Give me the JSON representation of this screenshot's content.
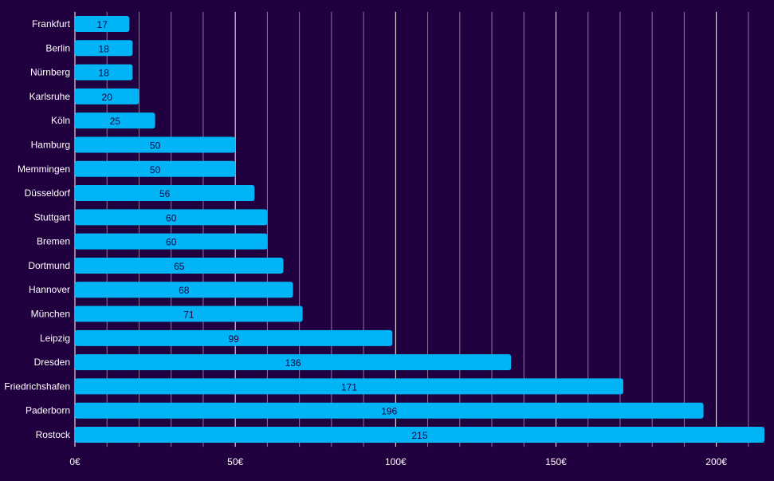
{
  "chart_data": {
    "type": "bar",
    "orientation": "horizontal",
    "categories": [
      "Frankfurt",
      "Berlin",
      "Nürnberg",
      "Karlsruhe",
      "Köln",
      "Hamburg",
      "Memmingen",
      "Düsseldorf",
      "Stuttgart",
      "Bremen",
      "Dortmund",
      "Hannover",
      "München",
      "Leipzig",
      "Dresden",
      "Friedrichshafen",
      "Paderborn",
      "Rostock"
    ],
    "values": [
      17,
      18,
      18,
      20,
      25,
      50,
      50,
      56,
      60,
      60,
      65,
      68,
      71,
      99,
      136,
      171,
      196,
      215
    ],
    "value_labels": [
      "17",
      "18",
      "18",
      "20",
      "25",
      "50",
      "50",
      "56",
      "60",
      "60",
      "65",
      "68",
      "71",
      "99",
      "136",
      "171",
      "196",
      "215"
    ],
    "xlim": [
      0,
      215
    ],
    "xticks": [
      0,
      50,
      100,
      150,
      200
    ],
    "xtick_labels": [
      "0€",
      "50€",
      "100€",
      "150€",
      "200€"
    ],
    "minor_grid_step": 10,
    "grid": true,
    "title": "",
    "xlabel": "",
    "ylabel": "",
    "colors": {
      "background": "#21003f",
      "bar": "#00b4f5",
      "text": "#ffffff",
      "value_text": "#21003f",
      "major_grid": "#ffffff",
      "minor_grid": "#8a7a9e"
    }
  }
}
